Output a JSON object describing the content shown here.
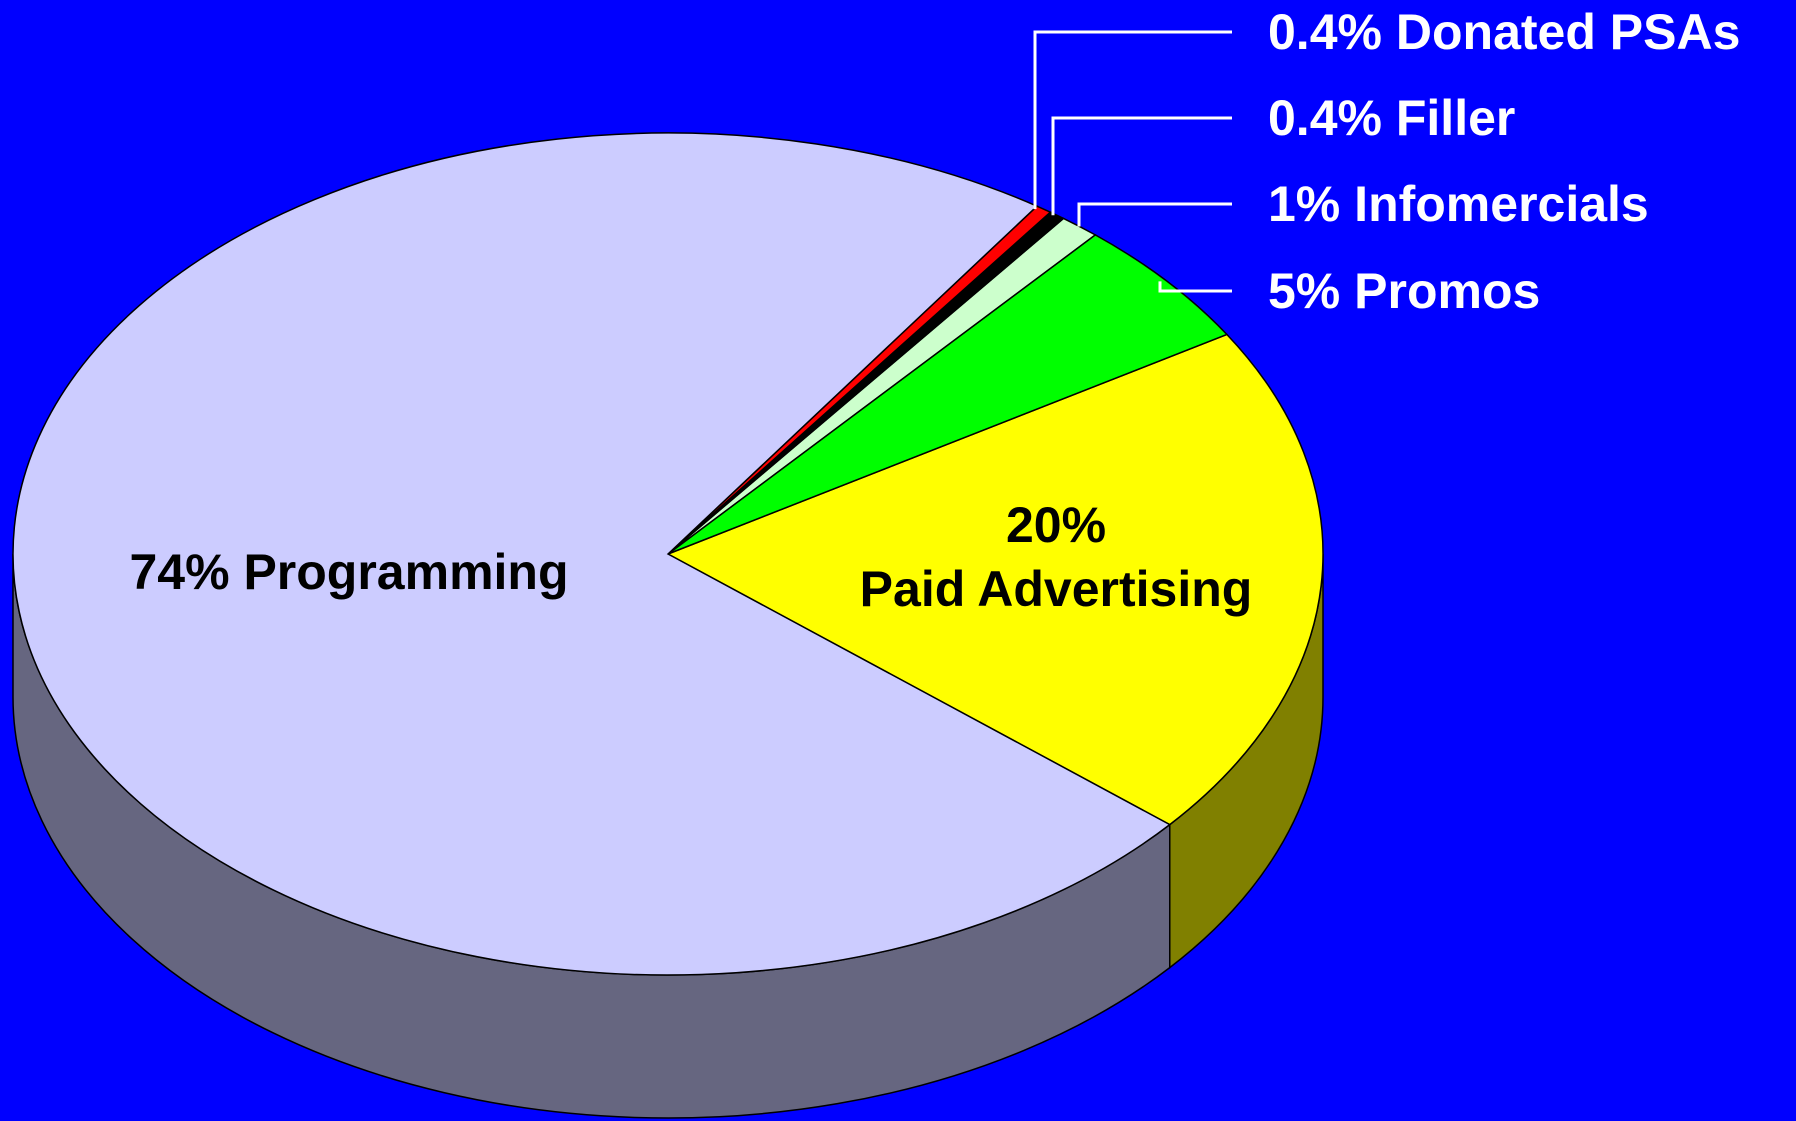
{
  "chart_data": {
    "type": "pie3d",
    "categories": [
      "Paid Advertising",
      "Promos",
      "Infomercials",
      "Filler",
      "Donated PSAs",
      "Programming"
    ],
    "values": [
      20,
      5,
      1,
      0.4,
      0.4,
      74
    ],
    "value_labels": [
      "20%",
      "5%",
      "1%",
      "0.4%",
      "0.4%",
      "74%"
    ],
    "colors": [
      "#ffff00",
      "#00ff00",
      "#ccffcc",
      "#000000",
      "#ff0000",
      "#ccccff"
    ],
    "side_colors": [
      "#808000",
      "#008000",
      "#80a080",
      "#000000",
      "#800000",
      "#666680"
    ]
  }
}
